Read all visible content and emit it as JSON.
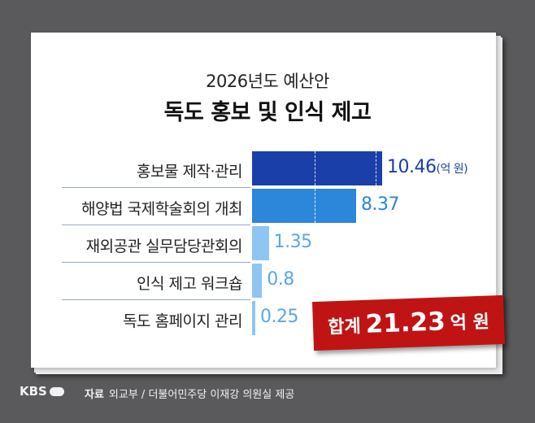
{
  "chart_data": {
    "type": "bar",
    "orientation": "horizontal",
    "subtitle": "2026년도 예산안",
    "title": "독도 홍보 및 인식 제고",
    "categories": [
      "홍보물 제작·관리",
      "해양법 국제학술회의 개최",
      "재외공관 실무담당관회의",
      "인식 제고 워크숍",
      "독도 홈페이지 관리"
    ],
    "values": [
      10.46,
      8.37,
      1.35,
      0.8,
      0.25
    ],
    "value_labels": [
      "10.46",
      "8.37",
      "1.35",
      "0.8",
      "0.25"
    ],
    "unit_label": "(억 원)",
    "bar_colors": [
      "#1a3fa8",
      "#2c86da",
      "#8ec5f2",
      "#8ec5f2",
      "#8ec5f2"
    ],
    "label_colors": [
      "#1a3fa8",
      "#2c86da",
      "#5aa7e4",
      "#5aa7e4",
      "#5aa7e4"
    ],
    "legend": "none",
    "grid": false,
    "total": {
      "prefix": "합계",
      "value": "21.23",
      "suffix": "억 원",
      "color": "#c01414"
    }
  },
  "footer": {
    "logo": "KBS",
    "source_label": "자료",
    "source_text": "외교부 / 더불어민주당 이재강 의원실 제공"
  }
}
